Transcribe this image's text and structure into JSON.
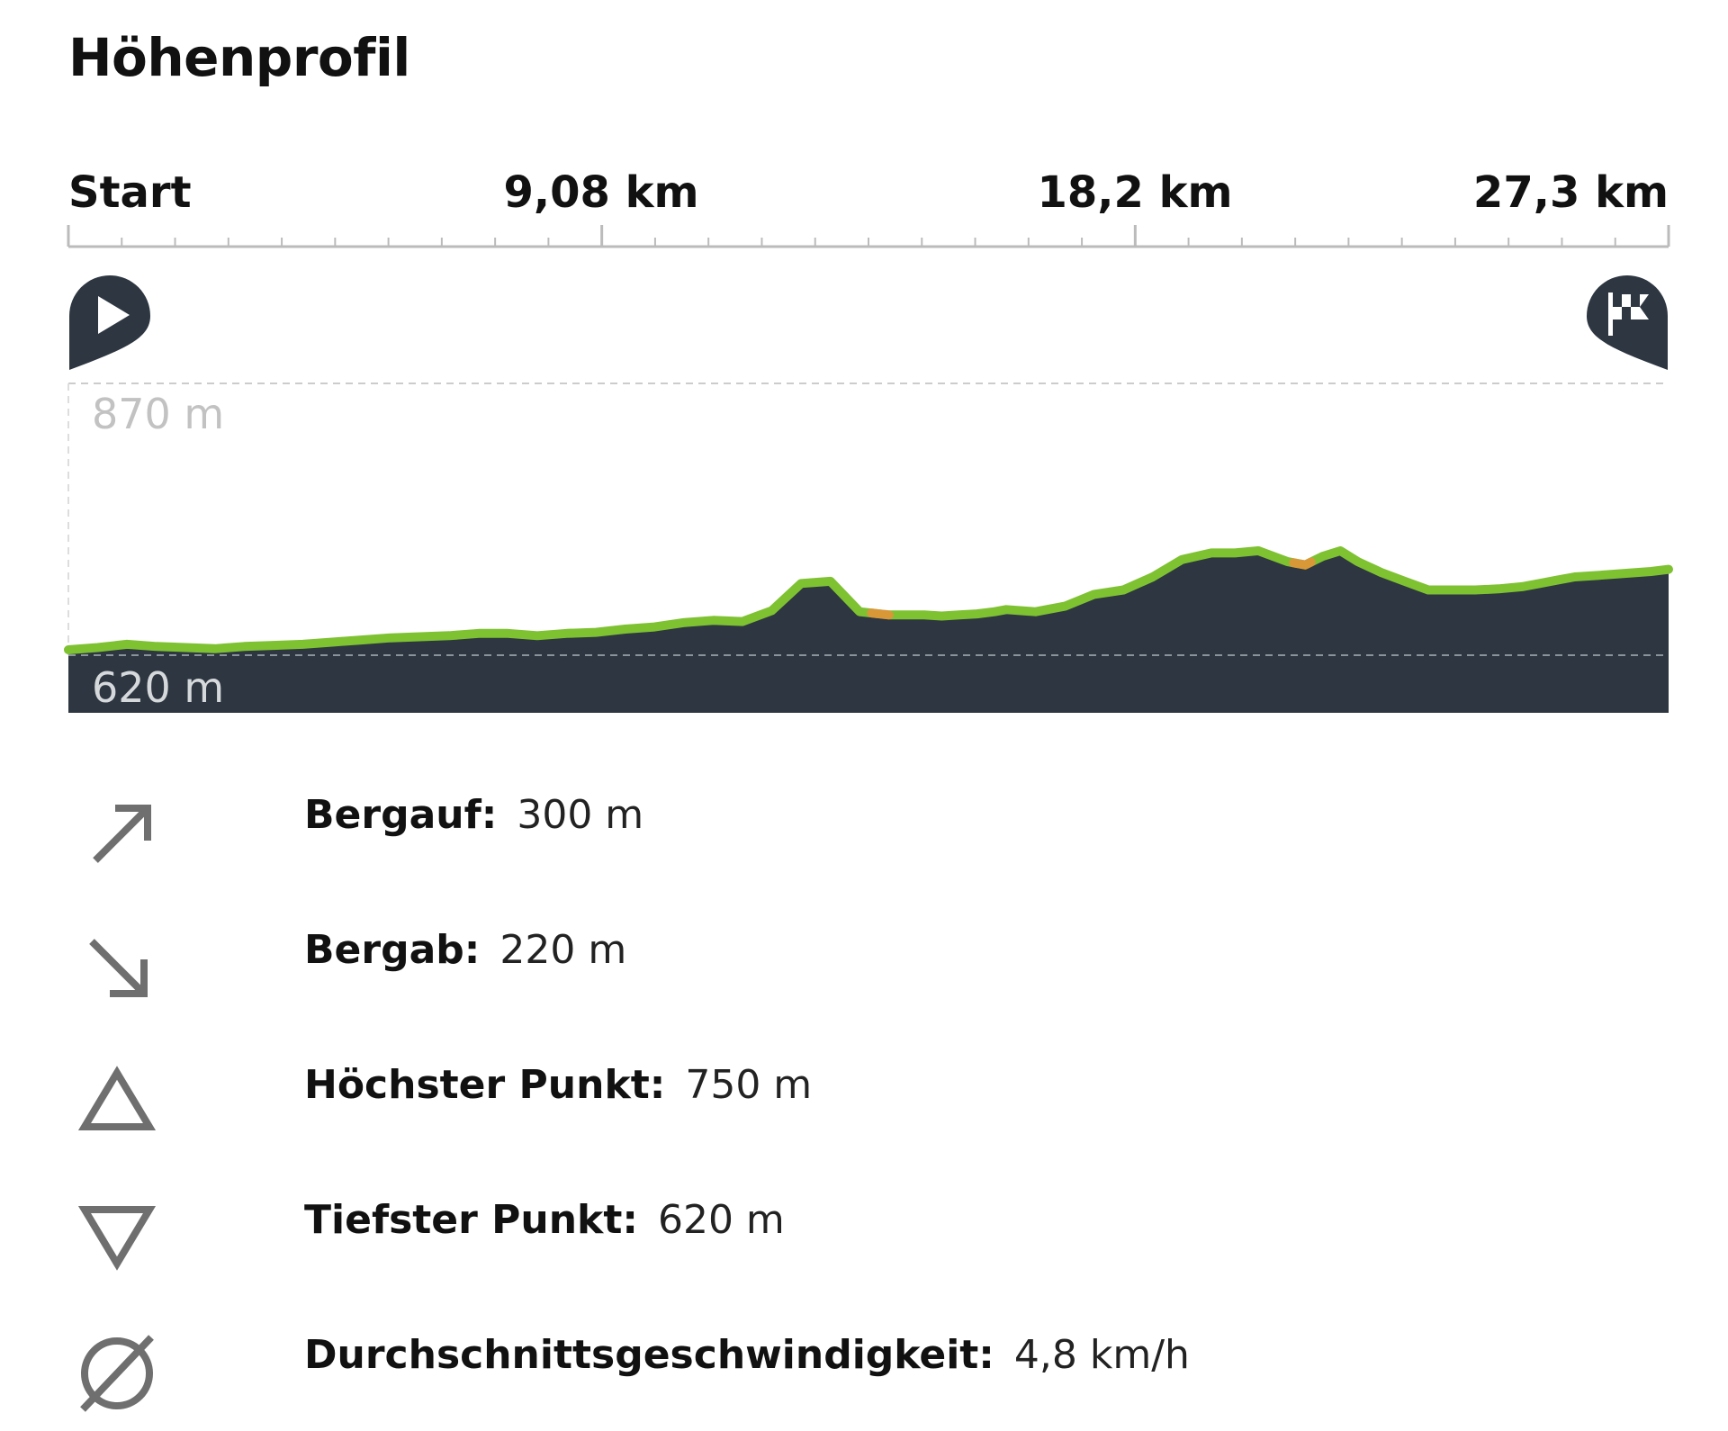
{
  "title": "Höhenprofil",
  "distance_axis": {
    "labels": [
      "Start",
      "9,08 km",
      "18,2 km",
      "27,3 km"
    ],
    "minor_ticks_between_labels": 10
  },
  "markers": {
    "start_icon": "play-icon",
    "finish_icon": "checkered-flag-icon"
  },
  "colors": {
    "profile_fill": "#2d3641",
    "profile_line": "#7ec232",
    "steep_segment": "#e8913a",
    "grid_line": "#cccccc",
    "icon_gray": "#6f6f6f"
  },
  "chart_data": {
    "type": "area",
    "y_labels": [
      "870 m",
      "620 m"
    ],
    "ylim": [
      620,
      870
    ],
    "xlim": [
      0,
      27.3
    ],
    "x": [
      0,
      0.5,
      1.0,
      1.5,
      2.0,
      2.5,
      3.0,
      3.5,
      4.0,
      4.5,
      5.0,
      5.5,
      6.0,
      6.5,
      7.0,
      7.5,
      8.0,
      8.5,
      9.0,
      9.5,
      10.0,
      10.5,
      11.0,
      11.5,
      12.0,
      12.5,
      13.0,
      13.5,
      14.0,
      14.3,
      14.6,
      14.9,
      15.2,
      15.5,
      15.8,
      16.0,
      16.5,
      17.0,
      17.5,
      18.0,
      18.5,
      19.0,
      19.5,
      19.9,
      20.3,
      20.8,
      21.1,
      21.4,
      21.7,
      22.0,
      22.4,
      22.8,
      23.2,
      23.6,
      24.0,
      24.4,
      24.8,
      25.1,
      25.4,
      25.7,
      26.0,
      26.5,
      27.0,
      27.3
    ],
    "elevation_m": [
      625,
      627,
      630,
      628,
      627,
      626,
      628,
      629,
      630,
      632,
      634,
      636,
      637,
      638,
      640,
      640,
      638,
      640,
      641,
      644,
      646,
      650,
      652,
      651,
      661,
      686,
      688,
      660,
      657,
      657,
      657,
      656,
      657,
      658,
      660,
      662,
      660,
      665,
      676,
      680,
      692,
      708,
      714,
      714,
      716,
      706,
      703,
      711,
      716,
      706,
      696,
      688,
      680,
      680,
      680,
      681,
      683,
      686,
      689,
      692,
      693,
      695,
      697,
      699
    ],
    "steep_segments_km": [
      [
        13.7,
        14.0
      ],
      [
        20.9,
        21.2
      ]
    ]
  },
  "stats": [
    {
      "icon": "arrow-up-right-icon",
      "label": "Bergauf:",
      "value": "300 m"
    },
    {
      "icon": "arrow-down-right-icon",
      "label": "Bergab:",
      "value": "220 m"
    },
    {
      "icon": "triangle-up-outline-icon",
      "label": "Höchster Punkt:",
      "value": "750 m"
    },
    {
      "icon": "triangle-down-outline-icon",
      "label": "Tiefster Punkt:",
      "value": "620 m"
    },
    {
      "icon": "average-diameter-icon",
      "label": "Durchschnittsgeschwindigkeit:",
      "value": "4,8 km/h"
    }
  ]
}
